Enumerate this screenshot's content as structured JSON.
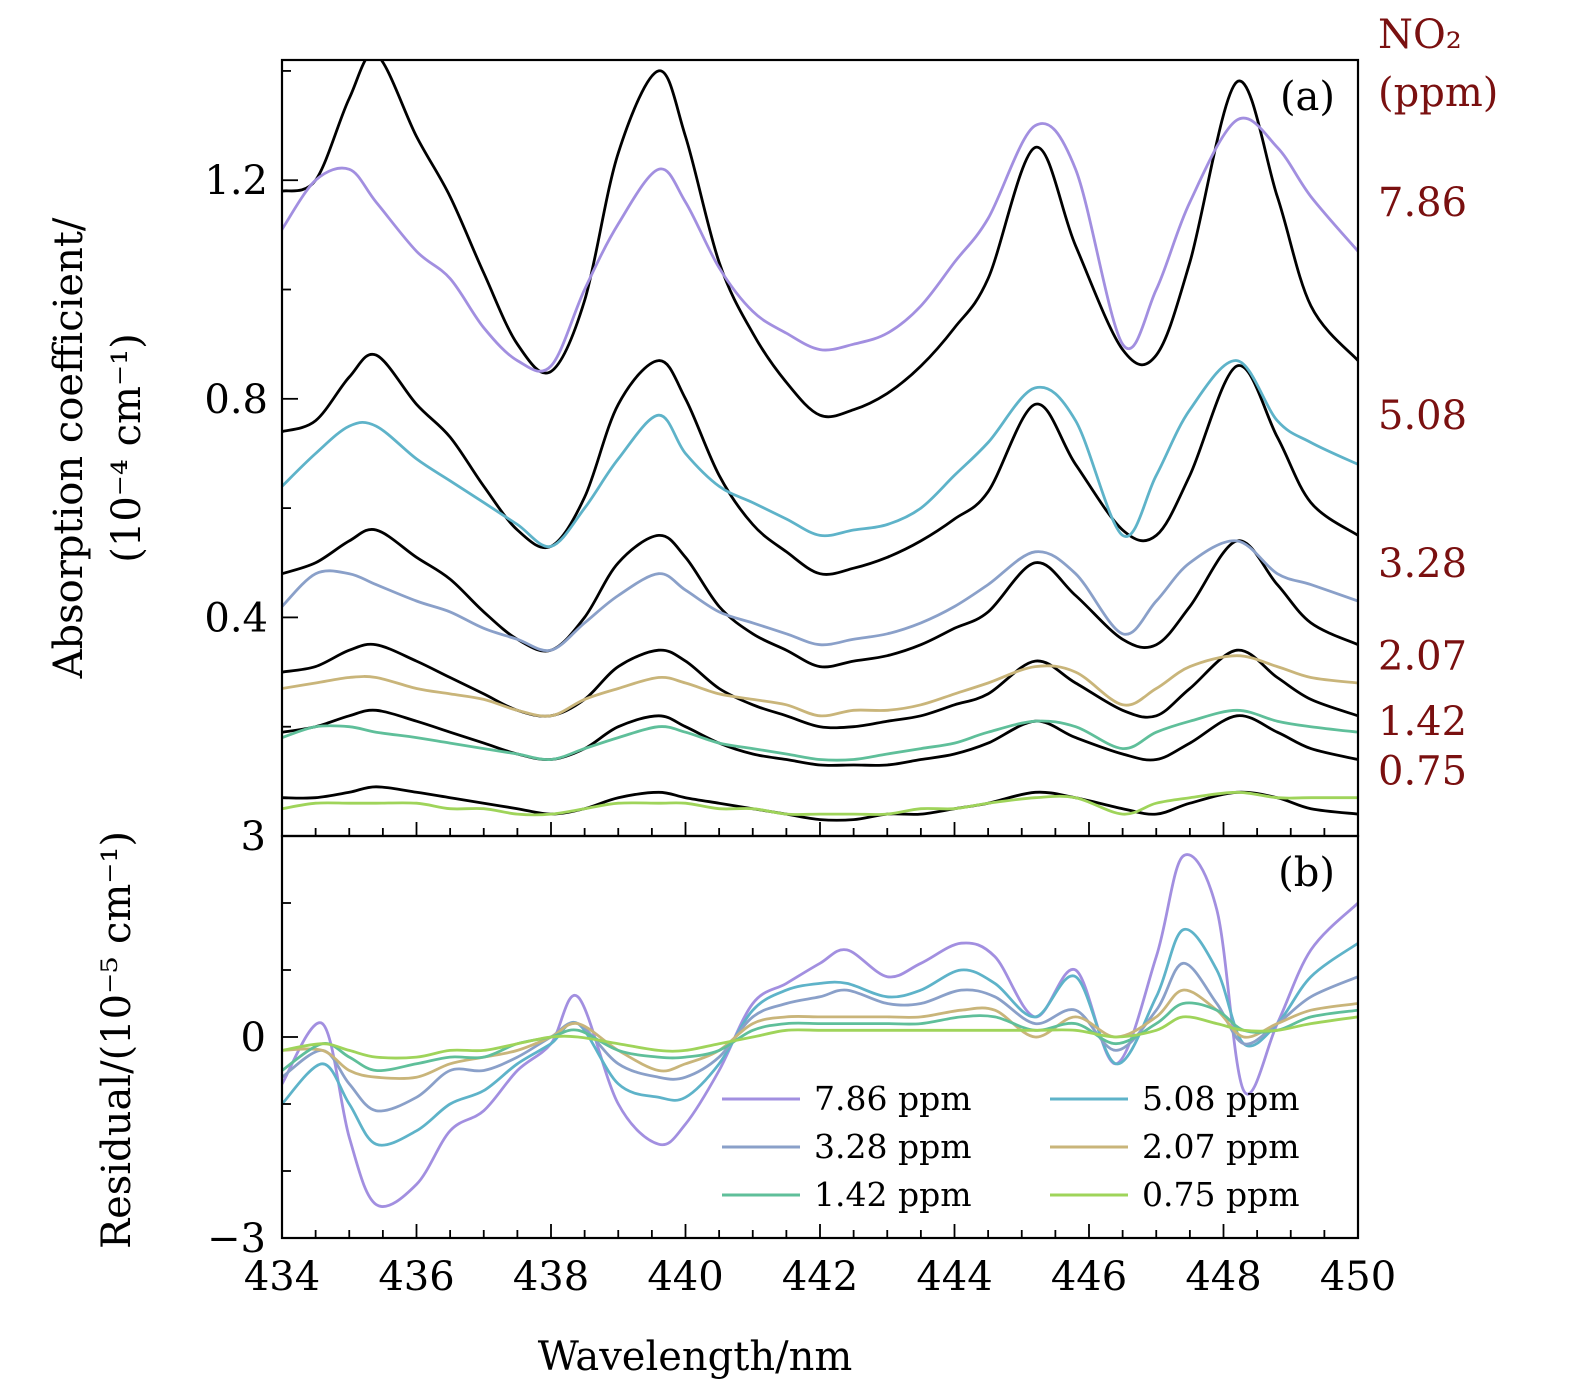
{
  "chart_data": [
    {
      "panel": "a",
      "type": "line",
      "panel_label": "(a)",
      "xlabel": "Wavelength/nm",
      "ylabel_line1": "Absorption coefficient/",
      "ylabel_line2": "(10⁻⁴ cm⁻¹)",
      "xlim": [
        434,
        450
      ],
      "ylim": [
        0.0,
        1.42
      ],
      "y_ticks": [
        0.4,
        0.8,
        1.2
      ],
      "y_tick_labels": [
        "0.4",
        "0.8",
        "1.2"
      ],
      "right_title_line1": "NO₂",
      "right_title_line2": "(ppm)",
      "concentration_labels": [
        {
          "text": "7.86",
          "y": 1.16
        },
        {
          "text": "5.08",
          "y": 0.77
        },
        {
          "text": "3.28",
          "y": 0.5
        },
        {
          "text": "2.07",
          "y": 0.33
        },
        {
          "text": "1.42",
          "y": 0.21
        },
        {
          "text": "0.75",
          "y": 0.12
        }
      ],
      "x": [
        434,
        434.5,
        435,
        435.4,
        436,
        436.5,
        437,
        437.5,
        438,
        438.5,
        439,
        439.6,
        440,
        440.5,
        441,
        441.5,
        442,
        442.5,
        443,
        443.5,
        444,
        444.5,
        445.2,
        445.8,
        446.5,
        447,
        447.5,
        448.2,
        448.8,
        449.3,
        450
      ],
      "series": [
        {
          "name": "7.86 fit",
          "color": "#000000",
          "values": [
            1.18,
            1.2,
            1.35,
            1.43,
            1.28,
            1.17,
            1.03,
            0.9,
            0.85,
            0.98,
            1.25,
            1.4,
            1.28,
            1.05,
            0.92,
            0.83,
            0.77,
            0.78,
            0.81,
            0.86,
            0.93,
            1.02,
            1.26,
            1.08,
            0.89,
            0.88,
            1.05,
            1.38,
            1.17,
            0.97,
            0.87
          ]
        },
        {
          "name": "7.86 ppm",
          "color": "#a28fe0",
          "values": [
            1.11,
            1.2,
            1.22,
            1.16,
            1.07,
            1.02,
            0.93,
            0.87,
            0.86,
            1.0,
            1.12,
            1.22,
            1.16,
            1.04,
            0.96,
            0.92,
            0.89,
            0.9,
            0.92,
            0.97,
            1.05,
            1.13,
            1.3,
            1.22,
            0.9,
            1.0,
            1.16,
            1.31,
            1.26,
            1.17,
            1.07
          ]
        },
        {
          "name": "5.08 fit",
          "color": "#000000",
          "values": [
            0.74,
            0.76,
            0.84,
            0.88,
            0.79,
            0.73,
            0.64,
            0.56,
            0.53,
            0.62,
            0.79,
            0.87,
            0.8,
            0.66,
            0.57,
            0.52,
            0.48,
            0.49,
            0.51,
            0.54,
            0.58,
            0.63,
            0.79,
            0.68,
            0.56,
            0.55,
            0.66,
            0.86,
            0.73,
            0.61,
            0.55
          ]
        },
        {
          "name": "5.08 ppm",
          "color": "#5eb3c9",
          "values": [
            0.64,
            0.7,
            0.75,
            0.75,
            0.69,
            0.65,
            0.61,
            0.57,
            0.53,
            0.6,
            0.69,
            0.77,
            0.7,
            0.64,
            0.61,
            0.58,
            0.55,
            0.56,
            0.57,
            0.6,
            0.66,
            0.72,
            0.82,
            0.76,
            0.55,
            0.66,
            0.78,
            0.87,
            0.76,
            0.72,
            0.68
          ]
        },
        {
          "name": "3.28 fit",
          "color": "#000000",
          "values": [
            0.48,
            0.5,
            0.54,
            0.56,
            0.51,
            0.47,
            0.41,
            0.36,
            0.34,
            0.4,
            0.5,
            0.55,
            0.51,
            0.42,
            0.37,
            0.34,
            0.31,
            0.32,
            0.33,
            0.35,
            0.38,
            0.41,
            0.5,
            0.44,
            0.36,
            0.35,
            0.42,
            0.54,
            0.46,
            0.39,
            0.35
          ]
        },
        {
          "name": "3.28 ppm",
          "color": "#8aa0c9",
          "values": [
            0.42,
            0.48,
            0.48,
            0.46,
            0.43,
            0.41,
            0.38,
            0.36,
            0.34,
            0.39,
            0.44,
            0.48,
            0.45,
            0.41,
            0.39,
            0.37,
            0.35,
            0.36,
            0.37,
            0.39,
            0.42,
            0.46,
            0.52,
            0.48,
            0.37,
            0.43,
            0.5,
            0.54,
            0.48,
            0.46,
            0.43
          ]
        },
        {
          "name": "2.07 fit",
          "color": "#000000",
          "values": [
            0.3,
            0.31,
            0.34,
            0.35,
            0.32,
            0.29,
            0.26,
            0.23,
            0.22,
            0.25,
            0.31,
            0.34,
            0.32,
            0.27,
            0.24,
            0.22,
            0.2,
            0.2,
            0.21,
            0.22,
            0.24,
            0.26,
            0.32,
            0.28,
            0.23,
            0.22,
            0.27,
            0.34,
            0.29,
            0.25,
            0.22
          ]
        },
        {
          "name": "2.07 ppm",
          "color": "#c9b57a",
          "values": [
            0.27,
            0.28,
            0.29,
            0.29,
            0.27,
            0.26,
            0.25,
            0.23,
            0.22,
            0.25,
            0.27,
            0.29,
            0.28,
            0.26,
            0.25,
            0.24,
            0.22,
            0.23,
            0.23,
            0.24,
            0.26,
            0.28,
            0.31,
            0.3,
            0.24,
            0.27,
            0.31,
            0.33,
            0.31,
            0.29,
            0.28
          ]
        },
        {
          "name": "1.42 fit",
          "color": "#000000",
          "values": [
            0.19,
            0.2,
            0.22,
            0.23,
            0.21,
            0.19,
            0.17,
            0.15,
            0.14,
            0.16,
            0.2,
            0.22,
            0.2,
            0.17,
            0.15,
            0.14,
            0.13,
            0.13,
            0.13,
            0.14,
            0.15,
            0.17,
            0.21,
            0.18,
            0.15,
            0.14,
            0.17,
            0.22,
            0.19,
            0.16,
            0.14
          ]
        },
        {
          "name": "1.42 ppm",
          "color": "#5fbf9a",
          "values": [
            0.18,
            0.2,
            0.2,
            0.19,
            0.18,
            0.17,
            0.16,
            0.15,
            0.14,
            0.16,
            0.18,
            0.2,
            0.19,
            0.17,
            0.16,
            0.15,
            0.14,
            0.14,
            0.15,
            0.16,
            0.17,
            0.19,
            0.21,
            0.2,
            0.16,
            0.19,
            0.21,
            0.23,
            0.21,
            0.2,
            0.19
          ]
        },
        {
          "name": "0.75 fit",
          "color": "#000000",
          "values": [
            0.07,
            0.07,
            0.08,
            0.09,
            0.08,
            0.07,
            0.06,
            0.05,
            0.04,
            0.05,
            0.07,
            0.08,
            0.07,
            0.06,
            0.05,
            0.04,
            0.03,
            0.03,
            0.04,
            0.04,
            0.05,
            0.06,
            0.08,
            0.07,
            0.05,
            0.04,
            0.06,
            0.08,
            0.07,
            0.05,
            0.04
          ]
        },
        {
          "name": "0.75 ppm",
          "color": "#9fd45a",
          "values": [
            0.05,
            0.06,
            0.06,
            0.06,
            0.06,
            0.05,
            0.05,
            0.04,
            0.04,
            0.05,
            0.06,
            0.06,
            0.06,
            0.05,
            0.05,
            0.04,
            0.04,
            0.04,
            0.04,
            0.05,
            0.05,
            0.06,
            0.07,
            0.07,
            0.04,
            0.06,
            0.07,
            0.08,
            0.07,
            0.07,
            0.07
          ]
        }
      ]
    },
    {
      "panel": "b",
      "type": "line",
      "panel_label": "(b)",
      "xlabel": "Wavelength/nm",
      "ylabel": "Residual/(10⁻⁵ cm⁻¹)",
      "xlim": [
        434,
        450
      ],
      "ylim": [
        -3,
        3
      ],
      "x_ticks": [
        434,
        436,
        438,
        440,
        442,
        444,
        446,
        448,
        450
      ],
      "x_tick_labels": [
        "434",
        "436",
        "438",
        "440",
        "442",
        "444",
        "446",
        "448",
        "450"
      ],
      "y_ticks": [
        -3,
        0,
        3
      ],
      "y_tick_labels": [
        "−3",
        "0",
        "3"
      ],
      "legend_position": "lower-right",
      "x": [
        434,
        434.6,
        435,
        435.4,
        436,
        436.5,
        437,
        437.5,
        438,
        438.4,
        439,
        439.6,
        440,
        440.5,
        441,
        441.5,
        442,
        442.4,
        443,
        443.5,
        444.1,
        444.6,
        445.2,
        445.8,
        446.4,
        447,
        447.4,
        447.9,
        448.3,
        448.8,
        449.3,
        450
      ],
      "series": [
        {
          "name": "7.86 ppm",
          "color": "#a28fe0",
          "values": [
            -0.7,
            0.2,
            -1.5,
            -2.5,
            -2.2,
            -1.4,
            -1.1,
            -0.5,
            -0.1,
            0.6,
            -1.0,
            -1.6,
            -1.3,
            -0.5,
            0.5,
            0.8,
            1.1,
            1.3,
            0.9,
            1.1,
            1.4,
            1.2,
            0.3,
            1.0,
            -0.4,
            1.2,
            2.7,
            1.9,
            -0.8,
            0.2,
            1.3,
            2.0
          ]
        },
        {
          "name": "5.08 ppm",
          "color": "#5eb3c9",
          "values": [
            -1.0,
            -0.4,
            -1.0,
            -1.6,
            -1.4,
            -1.0,
            -0.8,
            -0.4,
            -0.1,
            0.2,
            -0.7,
            -0.9,
            -0.9,
            -0.4,
            0.4,
            0.7,
            0.8,
            0.8,
            0.6,
            0.7,
            1.0,
            0.8,
            0.3,
            0.9,
            -0.4,
            0.6,
            1.6,
            1.0,
            -0.1,
            0.2,
            0.9,
            1.4
          ]
        },
        {
          "name": "3.28 ppm",
          "color": "#8aa0c9",
          "values": [
            -0.6,
            -0.2,
            -0.7,
            -1.1,
            -0.9,
            -0.5,
            -0.5,
            -0.3,
            0.0,
            0.2,
            -0.4,
            -0.6,
            -0.6,
            -0.3,
            0.3,
            0.5,
            0.6,
            0.7,
            0.5,
            0.5,
            0.7,
            0.6,
            0.2,
            0.4,
            -0.2,
            0.4,
            1.1,
            0.5,
            -0.1,
            0.2,
            0.6,
            0.9
          ]
        },
        {
          "name": "2.07 ppm",
          "color": "#c9b57a",
          "values": [
            -0.2,
            -0.2,
            -0.5,
            -0.6,
            -0.6,
            -0.4,
            -0.3,
            -0.2,
            0.0,
            0.2,
            -0.2,
            -0.5,
            -0.4,
            -0.2,
            0.2,
            0.3,
            0.3,
            0.3,
            0.3,
            0.3,
            0.4,
            0.4,
            0.0,
            0.3,
            0.0,
            0.3,
            0.7,
            0.4,
            0.0,
            0.2,
            0.4,
            0.5
          ]
        },
        {
          "name": "1.42 ppm",
          "color": "#5fbf9a",
          "values": [
            -0.5,
            -0.1,
            -0.3,
            -0.5,
            -0.4,
            -0.3,
            -0.3,
            -0.1,
            0.0,
            0.1,
            -0.2,
            -0.3,
            -0.3,
            -0.2,
            0.1,
            0.2,
            0.2,
            0.2,
            0.2,
            0.2,
            0.3,
            0.3,
            0.1,
            0.2,
            -0.1,
            0.2,
            0.5,
            0.4,
            0.1,
            0.1,
            0.3,
            0.4
          ]
        },
        {
          "name": "0.75 ppm",
          "color": "#9fd45a",
          "values": [
            -0.2,
            -0.1,
            -0.2,
            -0.3,
            -0.3,
            -0.2,
            -0.2,
            -0.1,
            0.0,
            0.0,
            -0.1,
            -0.2,
            -0.2,
            -0.1,
            0.0,
            0.1,
            0.1,
            0.1,
            0.1,
            0.1,
            0.1,
            0.1,
            0.1,
            0.1,
            0.0,
            0.1,
            0.3,
            0.2,
            0.1,
            0.1,
            0.2,
            0.3
          ]
        }
      ]
    }
  ]
}
